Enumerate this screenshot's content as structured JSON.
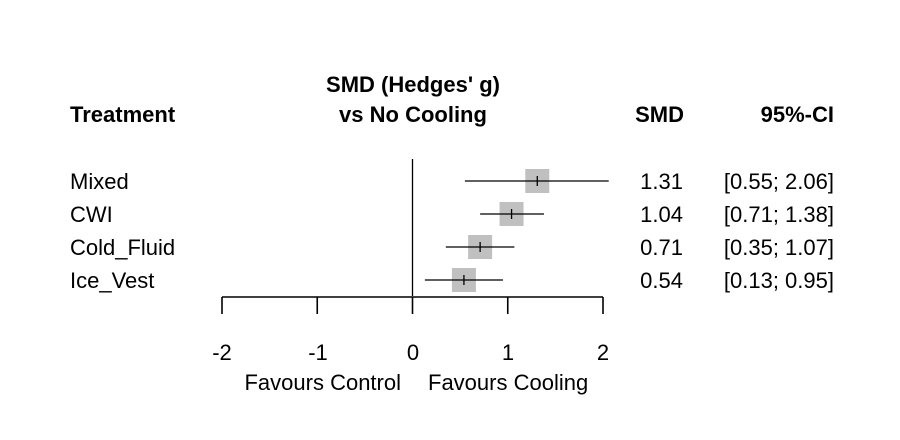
{
  "chart_data": {
    "type": "forest",
    "title_line1": "SMD (Hedges' g)",
    "title_line2": "vs No Cooling",
    "columns": {
      "treatment": "Treatment",
      "smd": "SMD",
      "ci": "95%-CI"
    },
    "studies": [
      {
        "label": "Mixed",
        "smd": 1.31,
        "lower": 0.55,
        "upper": 2.06,
        "smd_text": "1.31",
        "ci_text": "[0.55; 2.06]"
      },
      {
        "label": "CWI",
        "smd": 1.04,
        "lower": 0.71,
        "upper": 1.38,
        "smd_text": "1.04",
        "ci_text": "[0.71; 1.38]"
      },
      {
        "label": "Cold_Fluid",
        "smd": 0.71,
        "lower": 0.35,
        "upper": 1.07,
        "smd_text": "0.71",
        "ci_text": "[0.35; 1.07]"
      },
      {
        "label": "Ice_Vest",
        "smd": 0.54,
        "lower": 0.13,
        "upper": 0.95,
        "smd_text": "0.54",
        "ci_text": "[0.13; 0.95]"
      }
    ],
    "xlim": [
      -2,
      2
    ],
    "ticks": [
      -2,
      -1,
      0,
      1,
      2
    ],
    "tick_labels": [
      "-2",
      "-1",
      "0",
      "1",
      "2"
    ],
    "reference_line": 0,
    "favours_left": "Favours Control",
    "favours_right": "Favours Cooling",
    "colors": {
      "square": "#c0c0c0",
      "line": "#000000"
    }
  }
}
